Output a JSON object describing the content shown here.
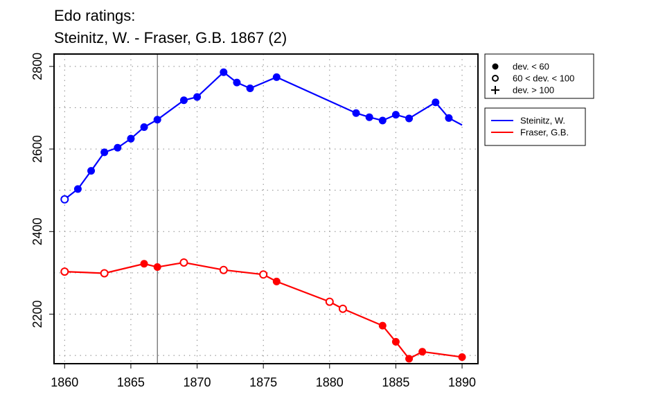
{
  "chart_data": {
    "type": "line",
    "title_lines": [
      "Edo ratings:",
      "Steinitz, W. - Fraser, G.B. 1867 (2)"
    ],
    "xlabel": "",
    "ylabel": "",
    "xlim": [
      1859.2,
      1891.2
    ],
    "ylim": [
      2080,
      2830
    ],
    "x_ticks": [
      1860,
      1865,
      1870,
      1875,
      1880,
      1885,
      1890
    ],
    "x_tick_labels": [
      "1860",
      "1865",
      "1870",
      "1875",
      "1880",
      "1885",
      "1890"
    ],
    "y_ticks": [
      2200,
      2400,
      2600,
      2800
    ],
    "y_tick_labels": [
      "2200",
      "2400",
      "2600",
      "2800"
    ],
    "x_minor_grid": [
      1860,
      1865,
      1870,
      1875,
      1880,
      1885,
      1890
    ],
    "y_minor_grid": [
      2100,
      2200,
      2300,
      2400,
      2500,
      2600,
      2700,
      2800
    ],
    "grid": "dotted",
    "vertical_marker_x": 1867,
    "deviation_legend": {
      "position": "top-right",
      "entries": [
        {
          "symbol": "filled",
          "label": "dev. < 60"
        },
        {
          "symbol": "open",
          "label": "60 < dev. < 100"
        },
        {
          "symbol": "plus",
          "label": "dev. > 100"
        }
      ]
    },
    "series_legend": {
      "position": "right",
      "entries": [
        {
          "name": "Steinitz, W.",
          "color": "#0000ff"
        },
        {
          "name": "Fraser, G.B.",
          "color": "#ff0000"
        }
      ]
    },
    "series": [
      {
        "name": "Steinitz, W.",
        "color": "#0000ff",
        "points": [
          {
            "x": 1860,
            "y": 2478,
            "marker": "open"
          },
          {
            "x": 1861,
            "y": 2503,
            "marker": "filled"
          },
          {
            "x": 1862,
            "y": 2547,
            "marker": "filled"
          },
          {
            "x": 1863,
            "y": 2592,
            "marker": "filled"
          },
          {
            "x": 1864,
            "y": 2603,
            "marker": "filled"
          },
          {
            "x": 1865,
            "y": 2625,
            "marker": "filled"
          },
          {
            "x": 1866,
            "y": 2653,
            "marker": "filled"
          },
          {
            "x": 1867,
            "y": 2671,
            "marker": "filled"
          },
          {
            "x": 1869,
            "y": 2718,
            "marker": "filled"
          },
          {
            "x": 1870,
            "y": 2726,
            "marker": "filled"
          },
          {
            "x": 1872,
            "y": 2786,
            "marker": "filled"
          },
          {
            "x": 1873,
            "y": 2761,
            "marker": "filled"
          },
          {
            "x": 1874,
            "y": 2747,
            "marker": "filled"
          },
          {
            "x": 1876,
            "y": 2774,
            "marker": "filled"
          },
          {
            "x": 1882,
            "y": 2687,
            "marker": "filled"
          },
          {
            "x": 1883,
            "y": 2677,
            "marker": "filled"
          },
          {
            "x": 1884,
            "y": 2669,
            "marker": "filled"
          },
          {
            "x": 1885,
            "y": 2683,
            "marker": "filled"
          },
          {
            "x": 1886,
            "y": 2674,
            "marker": "filled"
          },
          {
            "x": 1888,
            "y": 2713,
            "marker": "filled"
          },
          {
            "x": 1889,
            "y": 2675,
            "marker": "filled"
          },
          {
            "x": 1890,
            "y": 2658,
            "marker": "none"
          }
        ]
      },
      {
        "name": "Fraser, G.B.",
        "color": "#ff0000",
        "points": [
          {
            "x": 1860,
            "y": 2303,
            "marker": "open"
          },
          {
            "x": 1863,
            "y": 2299,
            "marker": "open"
          },
          {
            "x": 1866,
            "y": 2322,
            "marker": "filled"
          },
          {
            "x": 1867,
            "y": 2314,
            "marker": "filled"
          },
          {
            "x": 1869,
            "y": 2325,
            "marker": "open"
          },
          {
            "x": 1872,
            "y": 2307,
            "marker": "open"
          },
          {
            "x": 1875,
            "y": 2296,
            "marker": "open"
          },
          {
            "x": 1876,
            "y": 2279,
            "marker": "filled"
          },
          {
            "x": 1880,
            "y": 2230,
            "marker": "open"
          },
          {
            "x": 1881,
            "y": 2213,
            "marker": "open"
          },
          {
            "x": 1884,
            "y": 2172,
            "marker": "filled"
          },
          {
            "x": 1885,
            "y": 2133,
            "marker": "filled"
          },
          {
            "x": 1886,
            "y": 2092,
            "marker": "filled"
          },
          {
            "x": 1887,
            "y": 2109,
            "marker": "filled"
          },
          {
            "x": 1890,
            "y": 2096,
            "marker": "filled"
          }
        ]
      }
    ]
  }
}
